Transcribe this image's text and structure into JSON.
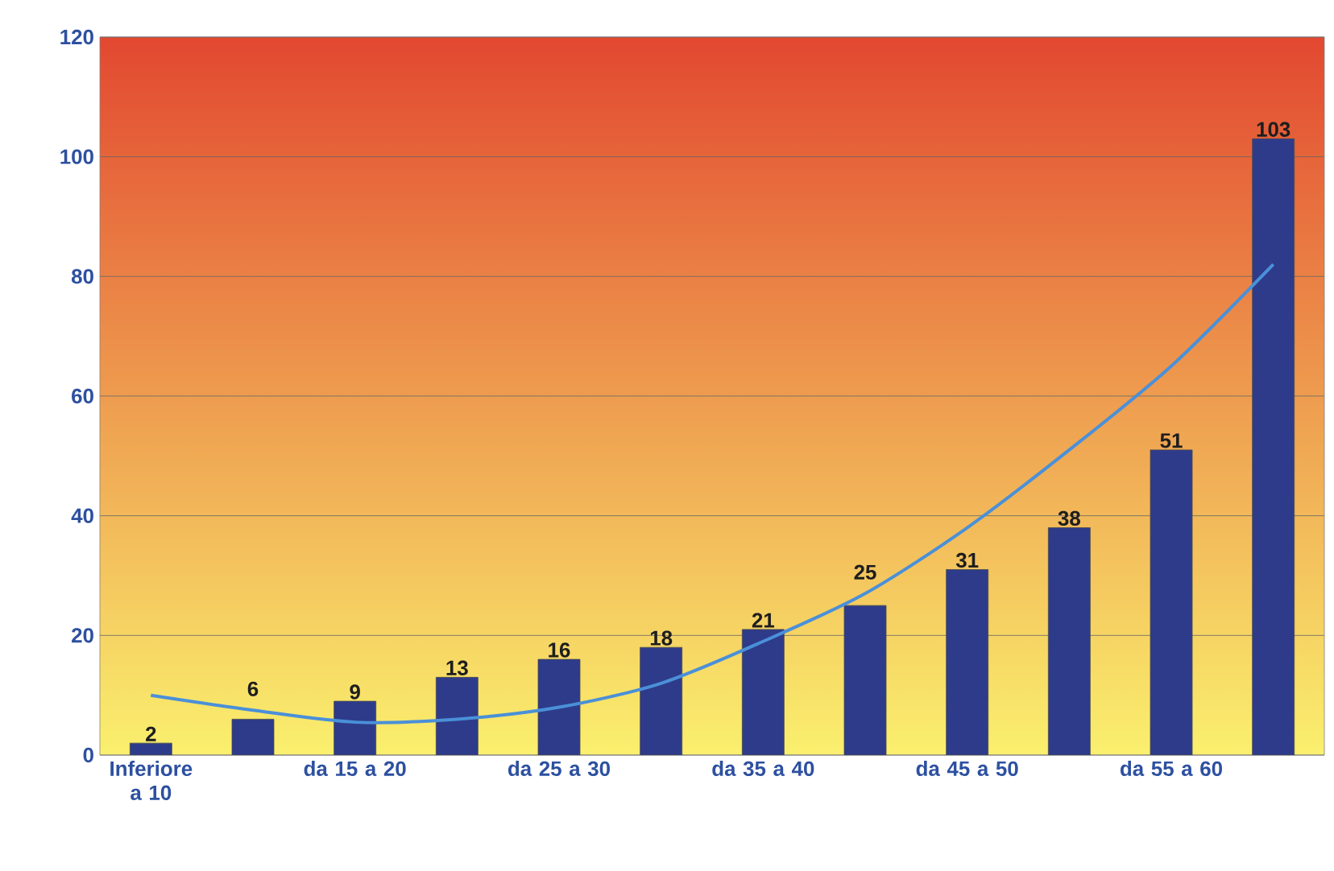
{
  "chart_data": {
    "type": "bar",
    "categories": [
      "Inferiore a 10",
      null,
      "da 15 a 20",
      null,
      "da 25 a 30",
      null,
      "da 35 a 40",
      null,
      "da 45 a 50",
      null,
      "da 55 a 60",
      null
    ],
    "series": [
      {
        "color": "#2e3b8a",
        "values": [
          2,
          6,
          9,
          13,
          16,
          18,
          21,
          25,
          31,
          38,
          51,
          103
        ],
        "value_labels": [
          "2",
          "6",
          "9",
          "13",
          "16",
          "18",
          "21",
          "25",
          "31",
          "38",
          "51",
          "103"
        ]
      },
      {
        "type": "line",
        "color": "#4a90d9",
        "values": [
          10,
          7.5,
          5.5,
          6,
          8,
          12,
          19,
          27,
          38,
          51,
          65,
          82
        ]
      }
    ],
    "ylim": [
      0,
      120
    ],
    "yticks": [
      0,
      20,
      40,
      60,
      80,
      100,
      120
    ],
    "grid": "y"
  }
}
